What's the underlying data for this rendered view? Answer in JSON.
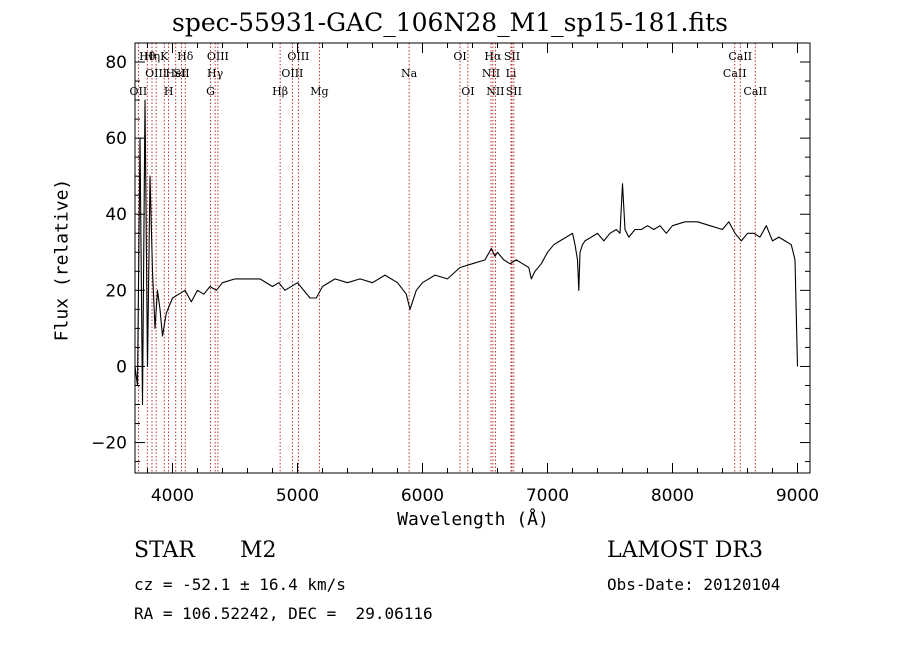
{
  "chart_data": {
    "type": "line",
    "title": "spec-55931-GAC_106N28_M1_sp15-181.fits",
    "xlabel": "Wavelength (Å)",
    "ylabel": "Flux (relative)",
    "xlim": [
      3700,
      9100
    ],
    "ylim": [
      -28,
      85
    ],
    "xticks": [
      4000,
      5000,
      6000,
      7000,
      8000,
      9000
    ],
    "yticks": [
      -20,
      0,
      20,
      40,
      60,
      80
    ],
    "grid": false,
    "series": [
      {
        "name": "spectrum",
        "x": [
          3700,
          3720,
          3740,
          3760,
          3780,
          3800,
          3820,
          3840,
          3860,
          3880,
          3900,
          3920,
          3950,
          4000,
          4050,
          4100,
          4150,
          4200,
          4250,
          4300,
          4350,
          4400,
          4500,
          4600,
          4700,
          4800,
          4850,
          4900,
          5000,
          5100,
          5150,
          5200,
          5300,
          5400,
          5500,
          5600,
          5700,
          5800,
          5870,
          5900,
          5950,
          6000,
          6100,
          6200,
          6300,
          6400,
          6500,
          6550,
          6580,
          6600,
          6650,
          6700,
          6750,
          6800,
          6850,
          6870,
          6900,
          6950,
          7000,
          7050,
          7100,
          7150,
          7200,
          7220,
          7240,
          7250,
          7260,
          7280,
          7300,
          7350,
          7400,
          7450,
          7500,
          7550,
          7580,
          7600,
          7620,
          7650,
          7700,
          7750,
          7800,
          7850,
          7900,
          7950,
          8000,
          8100,
          8200,
          8300,
          8400,
          8450,
          8500,
          8550,
          8600,
          8650,
          8700,
          8750,
          8800,
          8850,
          8900,
          8950,
          8980,
          9000
        ],
        "values": [
          0,
          -5,
          60,
          -10,
          70,
          0,
          50,
          25,
          10,
          20,
          15,
          8,
          14,
          18,
          19,
          20,
          17,
          20,
          19,
          21,
          20,
          22,
          23,
          23,
          23,
          21,
          22,
          20,
          22,
          18,
          18,
          21,
          23,
          22,
          23,
          22,
          24,
          22,
          19,
          15,
          20,
          22,
          24,
          23,
          26,
          27,
          28,
          31,
          29,
          30,
          28,
          27,
          28,
          27,
          26,
          23,
          25,
          27,
          30,
          32,
          33,
          34,
          35,
          32,
          28,
          20,
          30,
          32,
          33,
          34,
          35,
          33,
          35,
          36,
          35,
          48,
          36,
          34,
          36,
          36,
          37,
          36,
          37,
          35,
          37,
          38,
          38,
          37,
          36,
          38,
          35,
          33,
          35,
          35,
          34,
          37,
          33,
          34,
          33,
          32,
          28,
          0
        ]
      }
    ],
    "lines": [
      {
        "name": "OII",
        "wl": 3727,
        "row": 3
      },
      {
        "name": "Hθ",
        "wl": 3798,
        "row": 1
      },
      {
        "name": "Hη",
        "wl": 3836,
        "row": 1
      },
      {
        "name": "OIII",
        "wl": 3869,
        "row": 2
      },
      {
        "name": "K",
        "wl": 3934,
        "row": 1
      },
      {
        "name": "H",
        "wl": 3969,
        "row": 3
      },
      {
        "name": "HeI",
        "wl": 4026,
        "row": 2
      },
      {
        "name": "Hδ",
        "wl": 4102,
        "row": 1
      },
      {
        "name": "SII",
        "wl": 4072,
        "row": 2
      },
      {
        "name": "G",
        "wl": 4304,
        "row": 3
      },
      {
        "name": "Hγ",
        "wl": 4341,
        "row": 2
      },
      {
        "name": "OIII",
        "wl": 4363,
        "row": 1
      },
      {
        "name": "Hβ",
        "wl": 4861,
        "row": 3
      },
      {
        "name": "OIII",
        "wl": 4959,
        "row": 2
      },
      {
        "name": "OIII",
        "wl": 5007,
        "row": 1
      },
      {
        "name": "Mg",
        "wl": 5175,
        "row": 3
      },
      {
        "name": "Na",
        "wl": 5893,
        "row": 2
      },
      {
        "name": "OI",
        "wl": 6300,
        "row": 1
      },
      {
        "name": "OI",
        "wl": 6363,
        "row": 3
      },
      {
        "name": "NII",
        "wl": 6548,
        "row": 2
      },
      {
        "name": "Hα",
        "wl": 6563,
        "row": 1
      },
      {
        "name": "NII",
        "wl": 6583,
        "row": 3
      },
      {
        "name": "Li",
        "wl": 6708,
        "row": 2
      },
      {
        "name": "SII",
        "wl": 6716,
        "row": 1
      },
      {
        "name": "SII",
        "wl": 6731,
        "row": 3
      },
      {
        "name": "CaII",
        "wl": 8498,
        "row": 2
      },
      {
        "name": "CaII",
        "wl": 8542,
        "row": 1
      },
      {
        "name": "CaII",
        "wl": 8662,
        "row": 3
      }
    ]
  },
  "info": {
    "class_label": "STAR",
    "subclass": "M2",
    "survey": "LAMOST DR3",
    "cz": "cz = -52.1 ± 16.4 km/s",
    "obs_date": "Obs-Date: 20120104",
    "coords": "RA = 106.52242, DEC =  29.06116"
  }
}
